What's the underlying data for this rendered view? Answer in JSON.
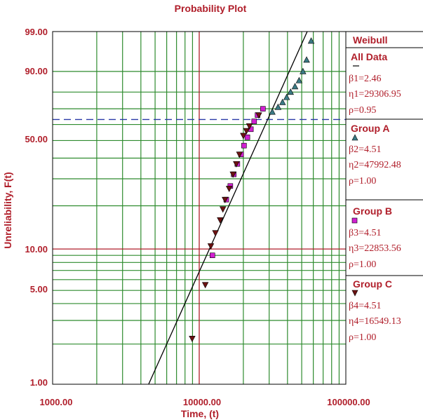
{
  "chart_data": {
    "type": "scatter",
    "title": "Probability Plot",
    "xlabel": "Time, (t)",
    "ylabel": "Unreliability, F(t)",
    "x_scale": "log",
    "y_scale": "weibull",
    "xlim": [
      1000,
      100000
    ],
    "ylim": [
      1,
      99
    ],
    "x_tick_labels": [
      "1000.00",
      "10000.00",
      "100000.00"
    ],
    "y_tick_labels": [
      "1.00",
      "5.00",
      "10.00",
      "50.00",
      "90.00",
      "99.00"
    ],
    "reference_lines": {
      "vertical_time": 10000,
      "horizontal_unreliability": 10,
      "dashed_horizontal_unreliability": 63.2
    },
    "fit_line": {
      "beta": 2.46,
      "eta": 29306.95
    },
    "series": [
      {
        "name": "Group A",
        "marker": "triangle-up",
        "color": "#3b7a84",
        "points": [
          [
            31500,
            68
          ],
          [
            34500,
            71
          ],
          [
            37000,
            74
          ],
          [
            39500,
            77
          ],
          [
            42000,
            80
          ],
          [
            45000,
            83
          ],
          [
            48000,
            86
          ],
          [
            51000,
            90
          ],
          [
            54000,
            94
          ],
          [
            58000,
            98
          ]
        ]
      },
      {
        "name": "Group B",
        "marker": "square",
        "color": "#d020d0",
        "points": [
          [
            12300,
            9
          ],
          [
            15300,
            22
          ],
          [
            16300,
            27
          ],
          [
            17200,
            32
          ],
          [
            18200,
            37
          ],
          [
            19300,
            42
          ],
          [
            20200,
            47
          ],
          [
            21300,
            52
          ],
          [
            22500,
            57
          ],
          [
            23700,
            62
          ],
          [
            25000,
            66
          ],
          [
            27200,
            70
          ]
        ]
      },
      {
        "name": "Group C",
        "marker": "triangle-down",
        "color": "#6b1212",
        "points": [
          [
            8950,
            2.2
          ],
          [
            11000,
            5.5
          ],
          [
            12000,
            10.5
          ],
          [
            12900,
            13
          ],
          [
            13900,
            16
          ],
          [
            14500,
            19
          ],
          [
            15000,
            22
          ],
          [
            16000,
            26
          ],
          [
            17000,
            32
          ],
          [
            17900,
            37
          ],
          [
            18800,
            42
          ],
          [
            20000,
            53
          ],
          [
            21000,
            56
          ],
          [
            22000,
            59
          ],
          [
            25500,
            66
          ]
        ]
      }
    ]
  },
  "legend": {
    "title": "Weibull",
    "all": {
      "label": "All Data",
      "beta": "β1=2.46",
      "eta": "η1=29306.95",
      "rho": "ρ=0.95"
    },
    "a": {
      "label": "Group A",
      "beta": "β2=4.51",
      "eta": "η2=47992.48",
      "rho": "ρ=1.00"
    },
    "b": {
      "label": "Group B",
      "beta": "β3=4.51",
      "eta": "η3=22853.56",
      "rho": "ρ=1.00"
    },
    "c": {
      "label": "Group C",
      "beta": "β4=4.51",
      "eta": "η4=16549.13",
      "rho": "ρ=1.00"
    }
  },
  "colors": {
    "label": "#b01e2a",
    "grid": "#2e8b2e",
    "reference": "#b01e2a",
    "dashed": "#2a3aa8",
    "fit": "#000000"
  }
}
